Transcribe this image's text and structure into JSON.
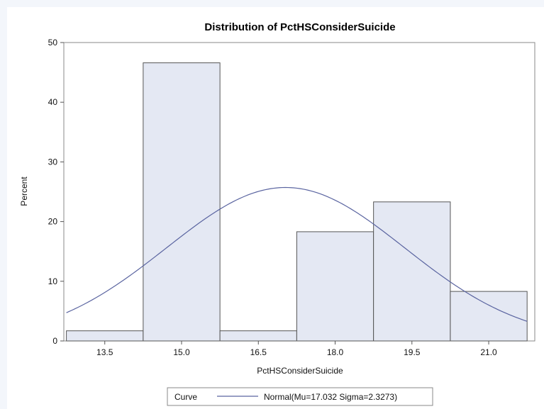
{
  "chart_data": {
    "type": "bar",
    "title": "Distribution of PctHSConsiderSuicide",
    "xlabel": "PctHSConsiderSuicide",
    "ylabel": "Percent",
    "xlim": [
      12.7,
      21.9
    ],
    "ylim": [
      0,
      50
    ],
    "xticks": [
      "13.5",
      "15.0",
      "16.5",
      "18.0",
      "19.5",
      "21.0"
    ],
    "yticks": [
      "0",
      "10",
      "20",
      "30",
      "40",
      "50"
    ],
    "bins": [
      {
        "center": 13.5,
        "width": 1.5,
        "value": 1.7
      },
      {
        "center": 15.0,
        "width": 1.5,
        "value": 46.6
      },
      {
        "center": 16.5,
        "width": 1.5,
        "value": 1.7
      },
      {
        "center": 18.0,
        "width": 1.5,
        "value": 18.3
      },
      {
        "center": 19.5,
        "width": 1.5,
        "value": 23.3
      },
      {
        "center": 21.0,
        "width": 1.5,
        "value": 8.3
      }
    ],
    "curve": {
      "type": "normal",
      "mu": 17.032,
      "sigma": 2.3273,
      "x_range": [
        12.75,
        21.75
      ]
    },
    "grid": false,
    "bar_fill": "#e4e8f3",
    "bar_stroke": "#555555",
    "curve_color": "#5a64a0",
    "legend": {
      "position": "bottom",
      "title": "Curve",
      "entries": [
        {
          "label": "Normal(Mu=17.032 Sigma=2.3273)",
          "color": "#5a64a0"
        }
      ]
    }
  }
}
